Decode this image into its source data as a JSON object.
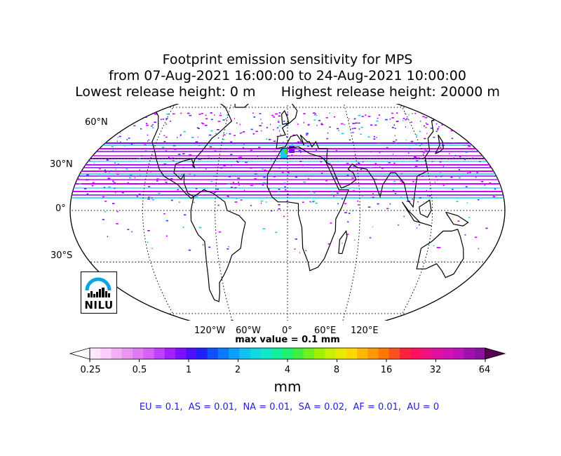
{
  "title": {
    "line1": "Footprint emission sensitivity for MPS",
    "line2": "from 07-Aug-2021 16:00:00 to 24-Aug-2021 10:00:00",
    "line3": "Lowest release height: 0 m      Highest release height: 20000 m"
  },
  "map": {
    "projection": "Robinson",
    "lat_labels": [
      "60°N",
      "30°N",
      "0°",
      "30°S"
    ],
    "lon_labels": [
      "120°W",
      "60°W",
      "0°",
      "60°E",
      "120°E"
    ],
    "max_value_text": "max value = 0.1 mm",
    "colors": {
      "magenta": "#d400ff",
      "purple": "#8b00ff",
      "cyan": "#19c8e6",
      "blue": "#2040ff",
      "green": "#3cdc3c"
    }
  },
  "logo": {
    "text": "NILU",
    "ring_color": "#0aa5e0"
  },
  "colorbar": {
    "ticks": [
      "0.25",
      "0.5",
      "1",
      "2",
      "4",
      "8",
      "16",
      "32",
      "64"
    ],
    "unit": "mm",
    "colors": [
      "#ffe6ff",
      "#ffccff",
      "#f5b0f5",
      "#ea96f0",
      "#e07cf0",
      "#d462f5",
      "#c040ff",
      "#a020ff",
      "#7a10ff",
      "#4c10ff",
      "#2020ff",
      "#1050ff",
      "#0a78ff",
      "#0aa0ff",
      "#10c0f0",
      "#10d8e0",
      "#10e8c8",
      "#10f0a0",
      "#20f070",
      "#40f040",
      "#70f020",
      "#a0f000",
      "#c8f000",
      "#e8e800",
      "#ffd800",
      "#ffb800",
      "#ff9800",
      "#ff7800",
      "#ff5020",
      "#ff2040",
      "#ff1060",
      "#f01080",
      "#e010a0",
      "#d010b0",
      "#c010b8",
      "#a010b0",
      "#8a10a0"
    ],
    "under_color": "#ffffff",
    "over_color": "#5a0050"
  },
  "regions_text": "EU = 0.1,  AS = 0.01,  NA = 0.01,  SA = 0.02,  AF = 0.01,  AU = 0"
}
